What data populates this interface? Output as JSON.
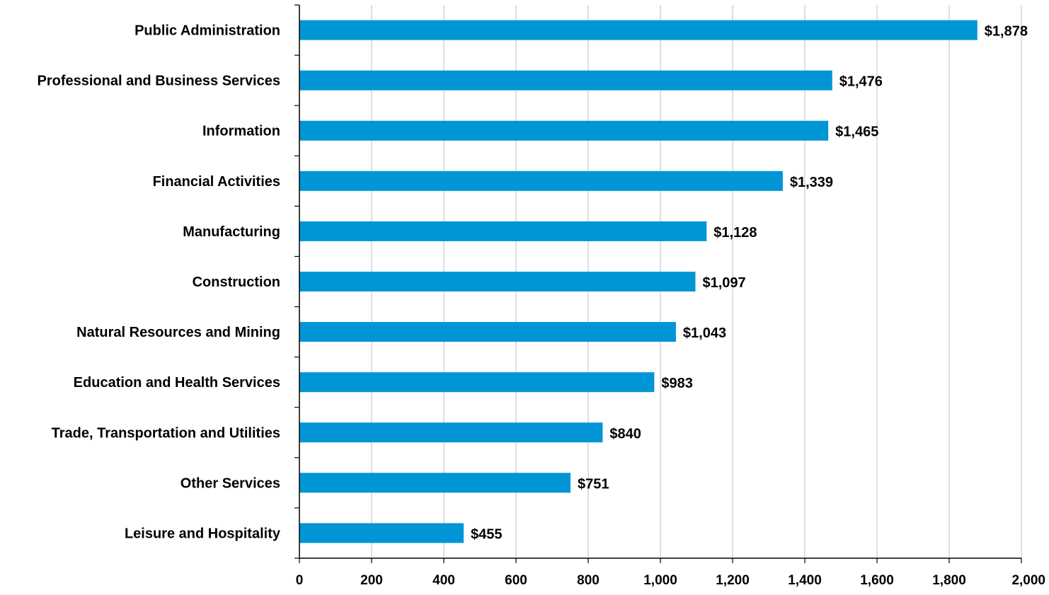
{
  "chart_data": {
    "type": "bar",
    "orientation": "horizontal",
    "title": "",
    "xlabel": "",
    "ylabel": "",
    "categories": [
      "Public Administration",
      "Professional and Business Services",
      "Information",
      "Financial Activities",
      "Manufacturing",
      "Construction",
      "Natural Resources and Mining",
      "Education and Health Services",
      "Trade, Transportation and Utilities",
      "Other Services",
      "Leisure and Hospitality"
    ],
    "values": [
      1878,
      1476,
      1465,
      1339,
      1128,
      1097,
      1043,
      983,
      840,
      751,
      455
    ],
    "data_labels": [
      "$1,878",
      "$1,476",
      "$1,465",
      "$1,339",
      "$1,128",
      "$1,097",
      "$1,043",
      "$983",
      "$840",
      "$751",
      "$455"
    ],
    "xlim": [
      0,
      2000
    ],
    "xticks": [
      0,
      200,
      400,
      600,
      800,
      1000,
      1200,
      1400,
      1600,
      1800,
      2000
    ],
    "xtick_labels": [
      "0",
      "200",
      "400",
      "600",
      "800",
      "1,000",
      "1,200",
      "1,400",
      "1,600",
      "1,800",
      "2,000"
    ],
    "grid": "vertical",
    "legend": "none",
    "bar_color": "#0096D6",
    "grid_color": "#BFBFBF",
    "axis_color": "#000000"
  }
}
